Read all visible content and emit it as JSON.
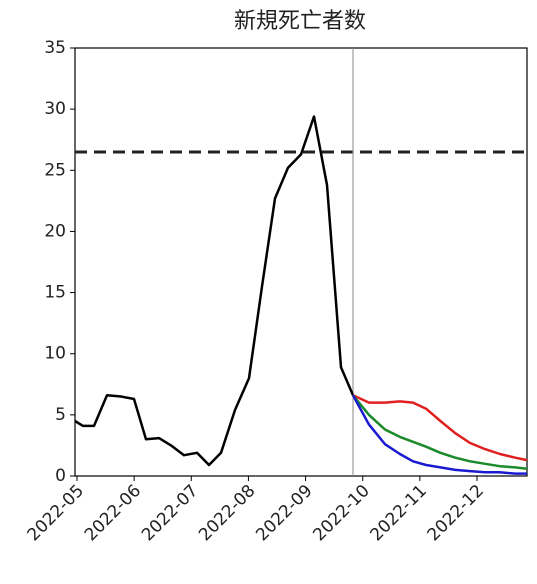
{
  "chart_data": {
    "type": "line",
    "title": "新規死亡者数",
    "xlim": [
      4.965,
      12.875
    ],
    "ylim": [
      0,
      35
    ],
    "xticks": [
      {
        "value": 5,
        "label": "2022-05"
      },
      {
        "value": 6,
        "label": "2022-06"
      },
      {
        "value": 7,
        "label": "2022-07"
      },
      {
        "value": 8,
        "label": "2022-08"
      },
      {
        "value": 9,
        "label": "2022-09"
      },
      {
        "value": 10,
        "label": "2022-10"
      },
      {
        "value": 11,
        "label": "2022-11"
      },
      {
        "value": 12,
        "label": "2022-12"
      }
    ],
    "yticks": [
      0,
      5,
      10,
      15,
      20,
      25,
      30,
      35
    ],
    "hline": 26.5,
    "vline": 9.83,
    "series": [
      {
        "color": "#000000",
        "x": [
          4.965,
          5.105,
          5.298,
          5.525,
          5.77,
          5.998,
          6.208,
          6.435,
          6.645,
          6.873,
          7.1,
          7.31,
          7.52,
          7.765,
          8.01,
          8.238,
          8.465,
          8.693,
          8.92,
          9.148,
          9.375,
          9.62,
          9.83
        ],
        "values": [
          4.5,
          4.1,
          4.1,
          6.6,
          6.5,
          6.3,
          3.0,
          3.1,
          2.5,
          1.7,
          1.9,
          0.9,
          1.9,
          5.4,
          8.0,
          15.5,
          22.7,
          25.2,
          26.3,
          29.4,
          23.8,
          8.9,
          6.6
        ]
      },
      {
        "color": "#e02020",
        "x": [
          9.83,
          10.11,
          10.39,
          10.65,
          10.88,
          11.11,
          11.36,
          11.62,
          11.88,
          12.14,
          12.4,
          12.67,
          12.875
        ],
        "values": [
          6.6,
          6.0,
          6.0,
          6.1,
          6.0,
          5.5,
          4.5,
          3.5,
          2.7,
          2.2,
          1.8,
          1.5,
          1.3
        ]
      },
      {
        "color": "#1a8a2a",
        "x": [
          9.83,
          10.11,
          10.39,
          10.65,
          10.88,
          11.11,
          11.36,
          11.62,
          11.88,
          12.14,
          12.4,
          12.67,
          12.875
        ],
        "values": [
          6.6,
          5.0,
          3.8,
          3.2,
          2.8,
          2.4,
          1.9,
          1.5,
          1.2,
          1.0,
          0.8,
          0.7,
          0.6
        ]
      },
      {
        "color": "#1a1ad0",
        "x": [
          9.83,
          10.11,
          10.39,
          10.65,
          10.88,
          11.11,
          11.36,
          11.62,
          11.88,
          12.14,
          12.4,
          12.67,
          12.875
        ],
        "values": [
          6.6,
          4.2,
          2.6,
          1.8,
          1.2,
          0.9,
          0.7,
          0.5,
          0.4,
          0.3,
          0.3,
          0.2,
          0.2
        ]
      }
    ]
  }
}
